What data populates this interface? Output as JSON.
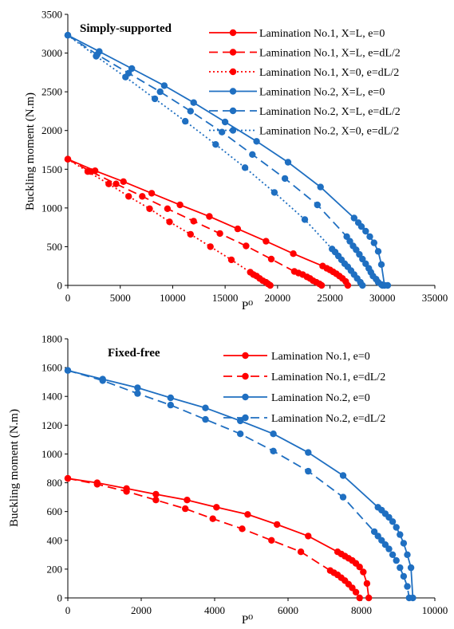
{
  "chart_data": [
    {
      "type": "line",
      "title": "Simply-supported",
      "xlabel": "P⁰",
      "ylabel": "Buckling moment (N.m)",
      "xlim": [
        0,
        35000
      ],
      "ylim": [
        0,
        3500
      ],
      "xticks": [
        "0",
        "5000",
        "10000",
        "15000",
        "20000",
        "25000",
        "30000",
        "35000"
      ],
      "yticks": [
        "0",
        "500",
        "1000",
        "1500",
        "2000",
        "2500",
        "3000",
        "3500"
      ],
      "legend_position": "top-right",
      "grid": false,
      "series": [
        {
          "name": "Lamination No.1, X=L, e=0",
          "color": "#ff0000",
          "style": "solid",
          "x": [
            0,
            2600,
            5300,
            8000,
            10700,
            13500,
            16200,
            18900,
            21500,
            24300,
            24700,
            25000,
            25300,
            25600,
            25900,
            26200,
            26500,
            26700
          ],
          "y": [
            1630,
            1480,
            1340,
            1190,
            1040,
            890,
            730,
            570,
            410,
            250,
            220,
            200,
            175,
            150,
            120,
            90,
            50,
            0
          ]
        },
        {
          "name": "Lamination No.1, X=L, e=dL/2",
          "color": "#ff0000",
          "style": "dashed",
          "x": [
            0,
            2200,
            4600,
            7100,
            9500,
            12000,
            14500,
            17000,
            19400,
            21600,
            22000,
            22400,
            22800,
            23100,
            23400,
            23700,
            24000,
            24200
          ],
          "y": [
            1630,
            1470,
            1310,
            1150,
            990,
            830,
            670,
            510,
            340,
            180,
            160,
            140,
            110,
            90,
            60,
            40,
            20,
            0
          ]
        },
        {
          "name": "Lamination No.1, X=0, e=dL/2",
          "color": "#ff0000",
          "style": "dotted",
          "x": [
            0,
            1900,
            3900,
            5800,
            7800,
            9700,
            11700,
            13600,
            15600,
            17400,
            17700,
            18000,
            18300,
            18600,
            18900,
            19100,
            19300
          ],
          "y": [
            1630,
            1470,
            1310,
            1150,
            990,
            820,
            660,
            500,
            330,
            170,
            140,
            120,
            90,
            60,
            40,
            20,
            0
          ]
        },
        {
          "name": "Lamination No.2, X=L, e=0",
          "color": "#1f6fc1",
          "style": "solid",
          "x": [
            0,
            3000,
            6100,
            9200,
            12000,
            15000,
            18000,
            21000,
            24100,
            27300,
            27700,
            28000,
            28400,
            28800,
            29200,
            29600,
            29900,
            30200,
            30500
          ],
          "y": [
            3230,
            3020,
            2800,
            2580,
            2360,
            2110,
            1860,
            1590,
            1270,
            870,
            810,
            760,
            700,
            630,
            550,
            440,
            270,
            0,
            0
          ]
        },
        {
          "name": "Lamination No.2, X=L, e=dL/2",
          "color": "#1f6fc1",
          "style": "dashed",
          "x": [
            0,
            2800,
            5800,
            8800,
            11700,
            14700,
            17600,
            20700,
            23800,
            26600,
            26900,
            27200,
            27500,
            27800,
            28100,
            28400,
            28700,
            28900,
            29100,
            29400,
            29600,
            29900,
            30000
          ],
          "y": [
            3230,
            2980,
            2740,
            2500,
            2250,
            1980,
            1690,
            1380,
            1040,
            630,
            570,
            510,
            460,
            400,
            340,
            280,
            220,
            170,
            120,
            80,
            40,
            10,
            0
          ]
        },
        {
          "name": "Lamination No.2, X=0, e=dL/2",
          "color": "#1f6fc1",
          "style": "dotted",
          "x": [
            0,
            2700,
            5500,
            8300,
            11200,
            14100,
            16900,
            19700,
            22600,
            25200,
            25500,
            25800,
            26100,
            26400,
            26700,
            27000,
            27300,
            27600,
            27900,
            28100
          ],
          "y": [
            3230,
            2960,
            2690,
            2410,
            2120,
            1820,
            1520,
            1200,
            850,
            470,
            430,
            380,
            330,
            280,
            240,
            190,
            140,
            90,
            40,
            0
          ]
        }
      ]
    },
    {
      "type": "line",
      "title": "Fixed-free",
      "xlabel": "P⁰",
      "ylabel": "Buckling moment (N.m)",
      "xlim": [
        0,
        10000
      ],
      "ylim": [
        0,
        1800
      ],
      "xticks": [
        "0",
        "2000",
        "4000",
        "6000",
        "8000",
        "10000"
      ],
      "yticks": [
        "0",
        "200",
        "400",
        "600",
        "800",
        "1000",
        "1200",
        "1400",
        "1600",
        "1800"
      ],
      "legend_position": "top-right",
      "grid": false,
      "series": [
        {
          "name": "Lamination No.1, e=0",
          "color": "#ff0000",
          "style": "solid",
          "x": [
            0,
            800,
            1600,
            2400,
            3250,
            4050,
            4900,
            5700,
            6550,
            7350,
            7450,
            7550,
            7650,
            7750,
            7850,
            7950,
            8050,
            8150,
            8200
          ],
          "y": [
            830,
            800,
            760,
            720,
            680,
            630,
            580,
            510,
            430,
            320,
            305,
            290,
            275,
            260,
            240,
            215,
            180,
            100,
            0
          ]
        },
        {
          "name": "Lamination No.1, e=dL/2",
          "color": "#ff0000",
          "style": "dashed",
          "x": [
            0,
            800,
            1600,
            2400,
            3200,
            3950,
            4750,
            5550,
            6350,
            7150,
            7250,
            7350,
            7450,
            7550,
            7650,
            7750,
            7850,
            7950
          ],
          "y": [
            830,
            790,
            740,
            680,
            620,
            550,
            480,
            400,
            320,
            190,
            175,
            160,
            140,
            120,
            95,
            70,
            40,
            0
          ]
        },
        {
          "name": "Lamination No.2, e=0",
          "color": "#1f6fc1",
          "style": "solid",
          "x": [
            0,
            950,
            1900,
            2800,
            3750,
            4700,
            5600,
            6550,
            7500,
            8450,
            8550,
            8650,
            8750,
            8850,
            8950,
            9050,
            9150,
            9250,
            9350,
            9400
          ],
          "y": [
            1580,
            1520,
            1460,
            1390,
            1320,
            1230,
            1140,
            1010,
            850,
            630,
            610,
            585,
            560,
            530,
            490,
            440,
            380,
            300,
            210,
            0
          ]
        },
        {
          "name": "Lamination No.2, e=dL/2",
          "color": "#1f6fc1",
          "style": "dashed",
          "x": [
            0,
            950,
            1900,
            2800,
            3750,
            4700,
            5600,
            6550,
            7500,
            8350,
            8450,
            8550,
            8650,
            8750,
            8850,
            8950,
            9050,
            9150,
            9250,
            9300
          ],
          "y": [
            1580,
            1510,
            1420,
            1340,
            1240,
            1140,
            1020,
            880,
            700,
            460,
            430,
            400,
            370,
            340,
            300,
            260,
            210,
            150,
            80,
            0
          ]
        }
      ]
    }
  ]
}
